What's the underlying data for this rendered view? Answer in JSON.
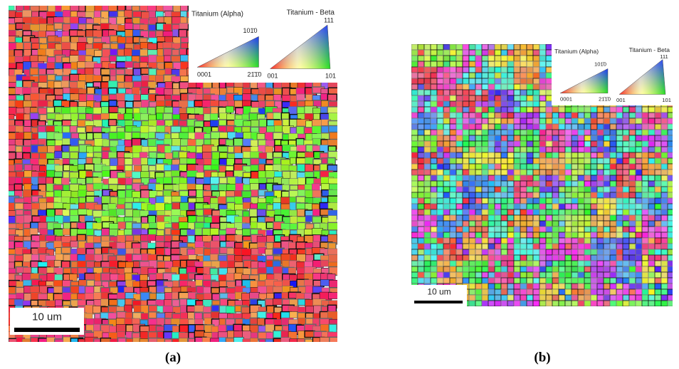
{
  "panels": [
    {
      "label": "(a)",
      "alpha": {
        "title": "Titanium (Alpha)",
        "top": "101̄0",
        "left": "0001",
        "right": "21̄1̄0"
      },
      "beta": {
        "title": "Titanium - Beta",
        "top": "111",
        "left": "001",
        "right": "101"
      },
      "scale_bar": "10 um"
    },
    {
      "label": "(b)",
      "alpha": {
        "title": "Titanium (Alpha)",
        "top": "101̄0",
        "left": "0001",
        "right": "21̄1̄0"
      },
      "beta": {
        "title": "Titanium - Beta",
        "top": "111",
        "left": "001",
        "right": "101"
      },
      "scale_bar": "10 um"
    }
  ]
}
